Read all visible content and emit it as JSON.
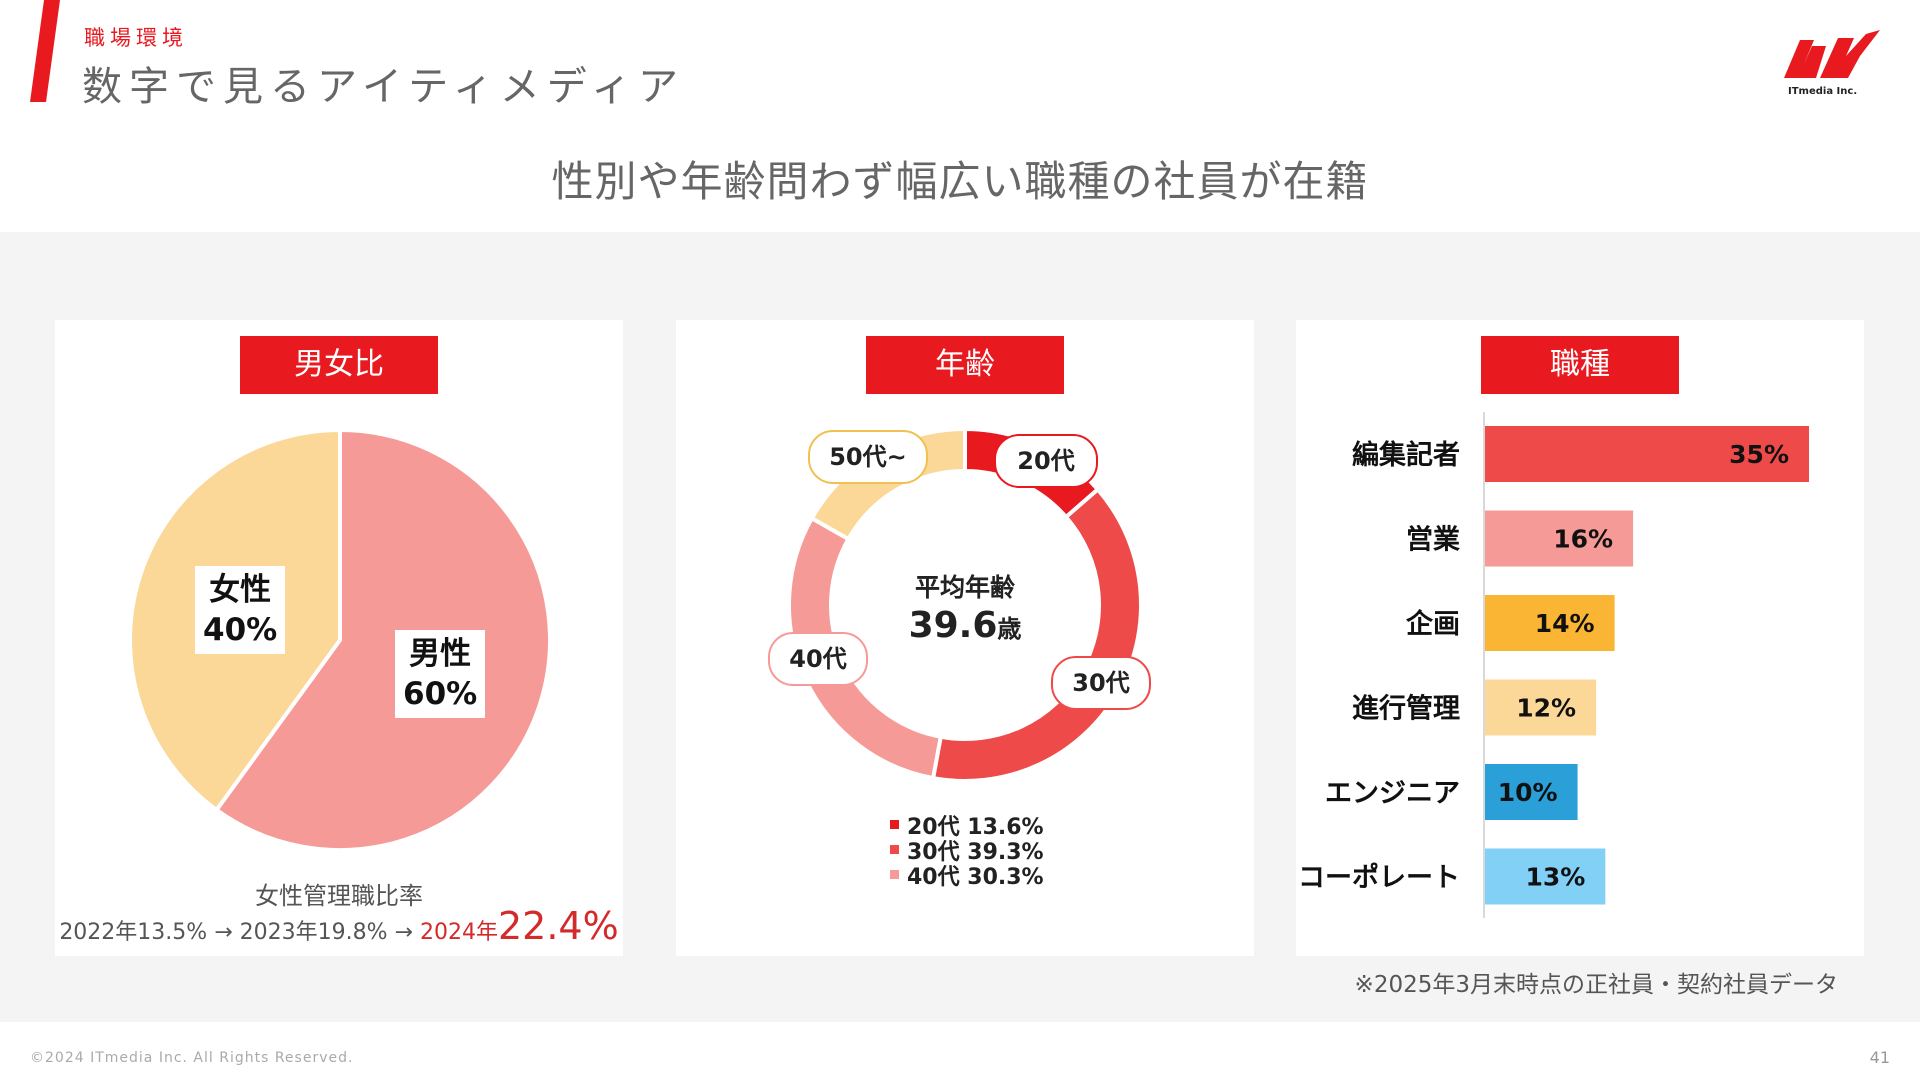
{
  "header": {
    "section_tag": "職場環境",
    "title": "数字で見るアイティメディア",
    "logo_text": "ITmedia Inc."
  },
  "headline": "性別や年齢問わず幅広い職種の社員が在籍",
  "colors": {
    "brand_red": "#e8191f",
    "male": "#f59a96",
    "female": "#fbd898",
    "age_20s": "#e8191f",
    "age_30s": "#ef4a4a",
    "age_40s": "#f59a96",
    "age_50s": "#fbd898",
    "job_editor": "#ef4a4a",
    "job_sales": "#f59a96",
    "job_planning": "#f9b533",
    "job_pm": "#fbd898",
    "job_engineer": "#2a9fd8",
    "job_corporate": "#82d0f6"
  },
  "gender": {
    "header": "男女比",
    "female_label": "女性",
    "female_value_label": "40%",
    "male_label": "男性",
    "male_value_label": "60%",
    "mgmt_title": "女性管理職比率",
    "mgmt_2022": "2022年13.5%",
    "arrow1": "→",
    "mgmt_2023": "2023年19.8%",
    "arrow2": "→",
    "mgmt_2024_year": "2024年",
    "mgmt_2024_value": "22.4%"
  },
  "age": {
    "header": "年齢",
    "center_title": "平均年齢",
    "center_value": "39.6",
    "center_unit": "歳",
    "bubbles": {
      "age_20s": "20代",
      "age_30s": "30代",
      "age_40s": "40代",
      "age_50s": "50代~"
    },
    "legend": [
      {
        "text": "20代 13.6%"
      },
      {
        "text": "30代 39.3%"
      },
      {
        "text": "40代 30.3%"
      }
    ]
  },
  "job": {
    "header": "職種"
  },
  "chart_data": [
    {
      "type": "pie",
      "categories": [
        "男性",
        "女性"
      ],
      "values": [
        60,
        40
      ]
    },
    {
      "type": "pie",
      "categories": [
        "20代",
        "30代",
        "40代",
        "50代~"
      ],
      "values": [
        13.6,
        39.3,
        30.3,
        16.8
      ]
    },
    {
      "type": "bar",
      "orientation": "horizontal",
      "categories": [
        "編集記者",
        "営業",
        "企画",
        "進行管理",
        "エンジニア",
        "コーポレート"
      ],
      "values": [
        35,
        16,
        14,
        12,
        10,
        13
      ],
      "value_labels": [
        "35%",
        "16%",
        "14%",
        "12%",
        "10%",
        "13%"
      ],
      "xlim": [
        0,
        35
      ]
    }
  ],
  "footnote": "※2025年3月末時点の正社員・契約社員データ",
  "footer": {
    "copyright": "©2024 ITmedia Inc. All Rights Reserved.",
    "page_number": "41"
  }
}
